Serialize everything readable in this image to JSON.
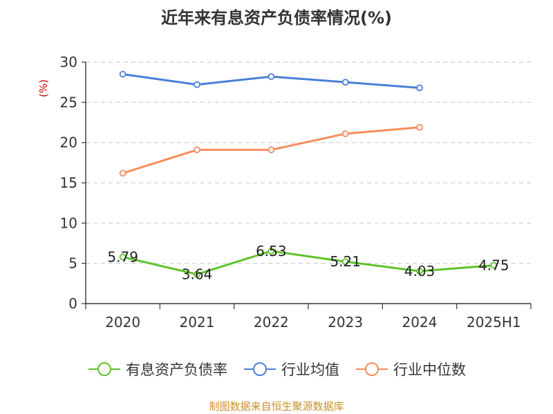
{
  "title": "近年来有息资产负债率情况(%)",
  "source": "制图数据来自恒生聚源数据库",
  "colors": {
    "debt_ratio": "#5ec22a",
    "industry_avg": "#4a7fd8",
    "industry_median": "#f78c5c",
    "unit_label": "#cc0000",
    "source_text": "#c8902a",
    "grid": "#cccccc",
    "axis": "#333333"
  },
  "chart_data": {
    "type": "line",
    "title": "近年来有息资产负债率情况(%)",
    "ylabel": "(%)",
    "xlabel": "",
    "categories": [
      "2020",
      "2021",
      "2022",
      "2023",
      "2024",
      "2025H1"
    ],
    "ylim": [
      0,
      30
    ],
    "yticks": [
      "0",
      "5",
      "10",
      "15",
      "20",
      "25",
      "30"
    ],
    "grid": true,
    "legend_position": "bottom",
    "series": [
      {
        "name": "有息资产负债率",
        "key": "debt_ratio",
        "values": [
          5.79,
          3.64,
          6.53,
          5.21,
          4.03,
          4.75
        ],
        "labels": [
          "5.79",
          "3.64",
          "6.53",
          "5.21",
          "4.03",
          "4.75"
        ]
      },
      {
        "name": "行业均值",
        "key": "industry_avg",
        "values": [
          28.5,
          27.2,
          28.2,
          27.5,
          26.8,
          null
        ]
      },
      {
        "name": "行业中位数",
        "key": "industry_median",
        "values": [
          16.2,
          19.1,
          19.1,
          21.1,
          21.9,
          null
        ]
      }
    ]
  }
}
